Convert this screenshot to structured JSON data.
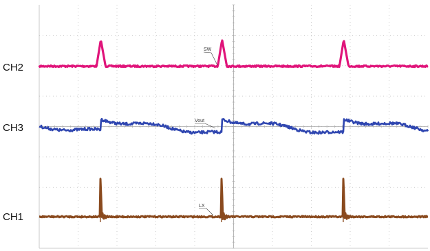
{
  "chart_data": {
    "type": "line",
    "grid": true,
    "grid_divisions": {
      "x": 10,
      "y": 8
    },
    "channels": [
      {
        "name": "CH2",
        "tag": "SW",
        "color": "#e0147a",
        "description": "pulse spike each period",
        "events": [
          0.158,
          0.47,
          0.783
        ]
      },
      {
        "name": "CH3",
        "tag": "Vout",
        "color": "#2f46b0",
        "description": "ripple waveform stepping up at each event",
        "events": [
          0.158,
          0.47,
          0.783
        ]
      },
      {
        "name": "CH1",
        "tag": "LX",
        "color": "#8a4a1e",
        "description": "switch node with ringing spike at each event",
        "events": [
          0.158,
          0.47,
          0.783
        ]
      }
    ]
  }
}
